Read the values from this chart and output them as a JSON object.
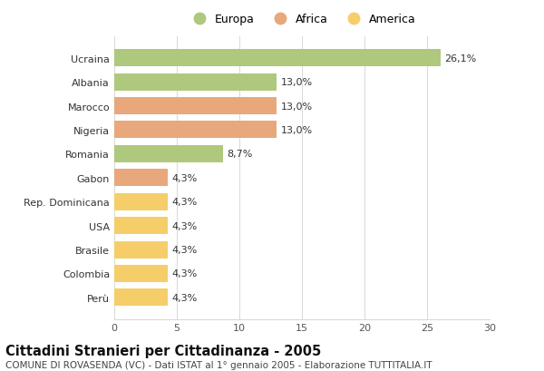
{
  "categories": [
    "Ucraina",
    "Albania",
    "Marocco",
    "Nigeria",
    "Romania",
    "Gabon",
    "Rep. Dominicana",
    "USA",
    "Brasile",
    "Colombia",
    "Perù"
  ],
  "values": [
    26.1,
    13.0,
    13.0,
    13.0,
    8.7,
    4.3,
    4.3,
    4.3,
    4.3,
    4.3,
    4.3
  ],
  "labels": [
    "26,1%",
    "13,0%",
    "13,0%",
    "13,0%",
    "8,7%",
    "4,3%",
    "4,3%",
    "4,3%",
    "4,3%",
    "4,3%",
    "4,3%"
  ],
  "colors": [
    "#aec97e",
    "#aec97e",
    "#e8a87c",
    "#e8a87c",
    "#aec97e",
    "#e8a87c",
    "#f5ce6a",
    "#f5ce6a",
    "#f5ce6a",
    "#f5ce6a",
    "#f5ce6a"
  ],
  "legend_labels": [
    "Europa",
    "Africa",
    "America"
  ],
  "legend_colors": [
    "#aec97e",
    "#e8a87c",
    "#f5ce6a"
  ],
  "title": "Cittadini Stranieri per Cittadinanza - 2005",
  "subtitle": "COMUNE DI ROVASENDA (VC) - Dati ISTAT al 1° gennaio 2005 - Elaborazione TUTTITALIA.IT",
  "xlim": [
    0,
    30
  ],
  "xticks": [
    0,
    5,
    10,
    15,
    20,
    25,
    30
  ],
  "background_color": "#ffffff",
  "grid_color": "#d8d8d8",
  "bar_height": 0.72,
  "title_fontsize": 10.5,
  "subtitle_fontsize": 7.5,
  "label_fontsize": 8,
  "tick_fontsize": 8,
  "legend_fontsize": 9
}
